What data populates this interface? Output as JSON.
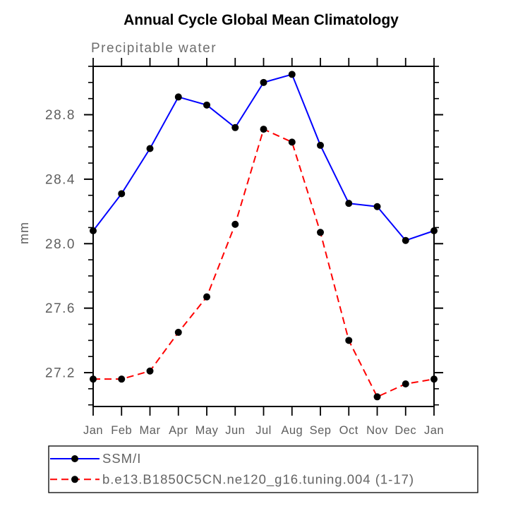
{
  "chart_data": {
    "type": "line",
    "title": "Annual Cycle Global Mean Climatology",
    "subtitle": "Precipitable water",
    "ylabel": "mm",
    "xlabel": "",
    "categories": [
      "Jan",
      "Feb",
      "Mar",
      "Apr",
      "May",
      "Jun",
      "Jul",
      "Aug",
      "Sep",
      "Oct",
      "Nov",
      "Dec",
      "Jan"
    ],
    "series": [
      {
        "name": "SSM/I",
        "color": "#0000ff",
        "line_style": "solid",
        "marker": "filled-circle",
        "marker_color": "#000000",
        "values": [
          28.08,
          28.31,
          28.59,
          28.91,
          28.86,
          28.72,
          29.0,
          29.05,
          28.61,
          28.25,
          28.23,
          28.02,
          28.08
        ]
      },
      {
        "name": "b.e13.B1850C5CN.ne120_g16.tuning.004 (1-17)",
        "color": "#ff0000",
        "line_style": "dashed",
        "marker": "filled-circle",
        "marker_color": "#000000",
        "values": [
          27.16,
          27.16,
          27.21,
          27.45,
          27.67,
          28.12,
          28.71,
          28.63,
          28.07,
          27.4,
          27.05,
          27.13,
          27.16
        ]
      }
    ],
    "ylim": [
      26.99,
      29.1
    ],
    "yticks_major": [
      27.2,
      27.6,
      28.0,
      28.4,
      28.8
    ],
    "ytick_minor_step": 0.1,
    "grid": false,
    "legend_position": "bottom",
    "axis_color": "#000000",
    "tick_label_color": "#5e5e5e"
  }
}
